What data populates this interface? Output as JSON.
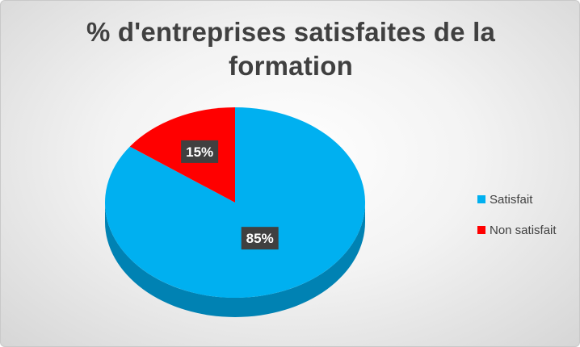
{
  "chart_data": {
    "type": "pie",
    "title_lines": [
      "% d'entreprises satisfaites de la",
      "formation"
    ],
    "slices": [
      {
        "name": "Satisfait",
        "value": 85,
        "label": "85%",
        "color": "#00B0F0",
        "side_color": "#0082B3"
      },
      {
        "name": "Non satisfait",
        "value": 15,
        "label": "15%",
        "color": "#FF0000",
        "side_color": "#B00000"
      }
    ],
    "legend_position": "right",
    "style": "3d"
  }
}
